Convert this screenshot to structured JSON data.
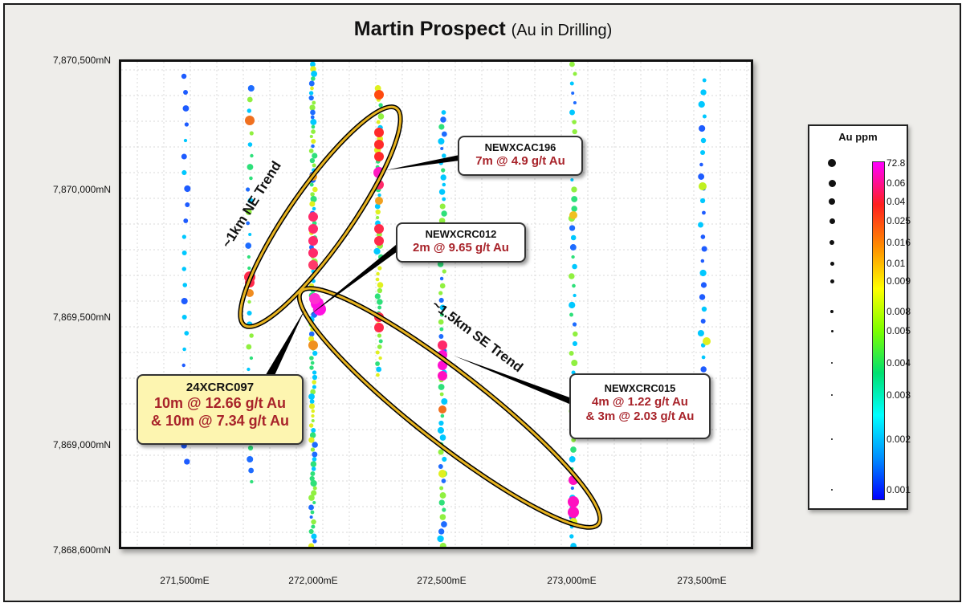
{
  "title": {
    "main": "Martin Prospect",
    "sub": "(Au in Drilling)"
  },
  "axes": {
    "y_labels": [
      "7,870,500mN",
      "7,870,000mN",
      "7,869,500mN",
      "7,869,000mN",
      "7,868,600mN"
    ],
    "x_labels": [
      "271,500mE",
      "272,000mE",
      "272,500mE",
      "273,000mE",
      "273,500mE"
    ]
  },
  "callouts": [
    {
      "hole": "NEWXCAC196",
      "result": "7m @ 4.9 g/t Au"
    },
    {
      "hole": "NEWXCRC012",
      "result": "2m @ 9.65 g/t Au"
    },
    {
      "hole": "24XCRC097",
      "result": "10m @ 12.66 g/t Au",
      "result2": "& 10m @ 7.34 g/t Au"
    },
    {
      "hole": "NEWXCRC015",
      "result": "4m @ 1.22 g/t Au",
      "result2": "& 3m @ 2.03 g/t Au"
    }
  ],
  "trends": [
    "~1km NE Trend",
    "~1.5km SE Trend"
  ],
  "legend": {
    "title": "Au ppm",
    "ticks": [
      "72.8",
      "0.06",
      "0.04",
      "0.025",
      "0.016",
      "0.01",
      "0.009",
      "0.008",
      "0.005",
      "0.004",
      "0.003",
      "0.002",
      "0.001"
    ],
    "colors": [
      "#ff00ff",
      "#ff2020",
      "#ff8c00",
      "#ffff00",
      "#7cff00",
      "#00e070",
      "#00ffff",
      "#0090ff",
      "#0000ff"
    ]
  }
}
